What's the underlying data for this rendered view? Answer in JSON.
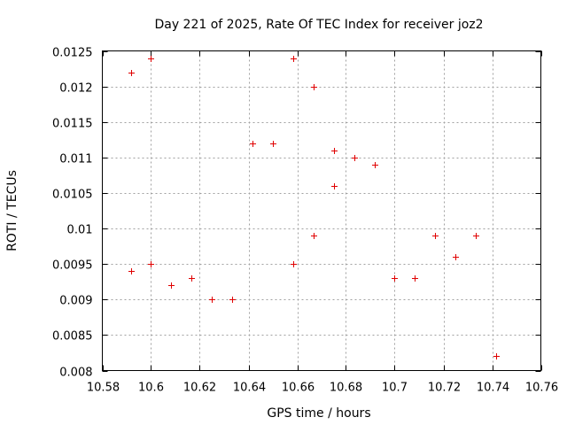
{
  "chart_data": {
    "type": "scatter",
    "title": "Day 221 of 2025, Rate Of TEC Index for receiver joz2",
    "xlabel": "GPS time / hours",
    "ylabel": "ROTI / TECUs",
    "xlim": [
      10.58,
      10.76
    ],
    "ylim": [
      0.008,
      0.0125
    ],
    "grid": true,
    "x_ticks": [
      10.58,
      10.6,
      10.62,
      10.64,
      10.66,
      10.68,
      10.7,
      10.72,
      10.74,
      10.76
    ],
    "x_tick_labels": [
      "10.58",
      "10.6",
      "10.62",
      "10.64",
      "10.66",
      "10.68",
      "10.7",
      "10.72",
      "10.74",
      "10.76"
    ],
    "y_ticks": [
      0.008,
      0.0085,
      0.009,
      0.0095,
      0.01,
      0.0105,
      0.011,
      0.0115,
      0.012,
      0.0125
    ],
    "y_tick_labels": [
      "0.008",
      "0.0085",
      "0.009",
      "0.0095",
      "0.01",
      "0.0105",
      "0.011",
      "0.0115",
      "0.012",
      "0.0125"
    ],
    "point_color": "#e00000",
    "marker": "plus",
    "points": [
      {
        "x": 10.5917,
        "y": 0.0122
      },
      {
        "x": 10.5917,
        "y": 0.0094
      },
      {
        "x": 10.6,
        "y": 0.0124
      },
      {
        "x": 10.6,
        "y": 0.0095
      },
      {
        "x": 10.6083,
        "y": 0.0092
      },
      {
        "x": 10.6167,
        "y": 0.0093
      },
      {
        "x": 10.625,
        "y": 0.009
      },
      {
        "x": 10.6333,
        "y": 0.009
      },
      {
        "x": 10.6417,
        "y": 0.0112
      },
      {
        "x": 10.65,
        "y": 0.0112
      },
      {
        "x": 10.6583,
        "y": 0.0124
      },
      {
        "x": 10.6583,
        "y": 0.0095
      },
      {
        "x": 10.6667,
        "y": 0.012
      },
      {
        "x": 10.6667,
        "y": 0.0099
      },
      {
        "x": 10.675,
        "y": 0.0111
      },
      {
        "x": 10.675,
        "y": 0.0106
      },
      {
        "x": 10.6833,
        "y": 0.011
      },
      {
        "x": 10.6917,
        "y": 0.0109
      },
      {
        "x": 10.7,
        "y": 0.0093
      },
      {
        "x": 10.7083,
        "y": 0.0093
      },
      {
        "x": 10.7167,
        "y": 0.0099
      },
      {
        "x": 10.725,
        "y": 0.0096
      },
      {
        "x": 10.7333,
        "y": 0.0099
      },
      {
        "x": 10.7417,
        "y": 0.0082
      }
    ]
  }
}
